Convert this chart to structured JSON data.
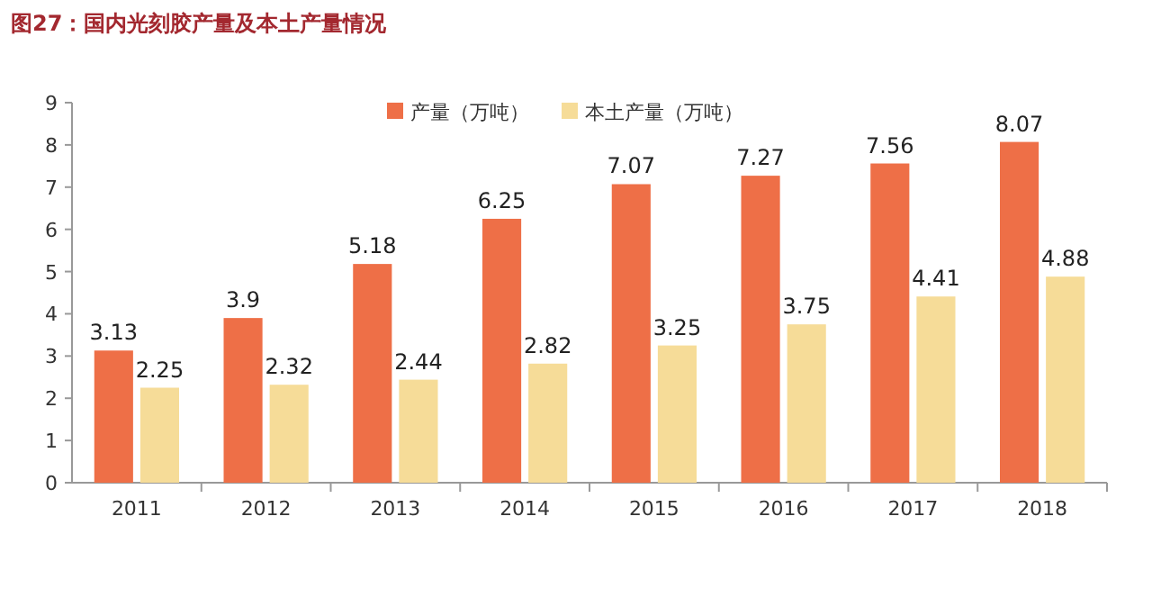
{
  "chart_data": {
    "type": "bar",
    "title": "图27：国内光刻胶产量及本土产量情况",
    "categories": [
      "2011",
      "2012",
      "2013",
      "2014",
      "2015",
      "2016",
      "2017",
      "2018"
    ],
    "series": [
      {
        "name": "产量（万吨）",
        "color": "#ee6f47",
        "values": [
          3.13,
          3.9,
          5.18,
          6.25,
          7.07,
          7.27,
          7.56,
          8.07
        ]
      },
      {
        "name": "本土产量（万吨）",
        "color": "#f6dc98",
        "values": [
          2.25,
          2.32,
          2.44,
          2.82,
          3.25,
          3.75,
          4.41,
          4.88
        ]
      }
    ],
    "ylim": [
      0,
      9
    ],
    "yticks": [
      0,
      1,
      2,
      3,
      4,
      5,
      6,
      7,
      8,
      9
    ],
    "data_labels": true,
    "legend": "top",
    "grid": false
  }
}
